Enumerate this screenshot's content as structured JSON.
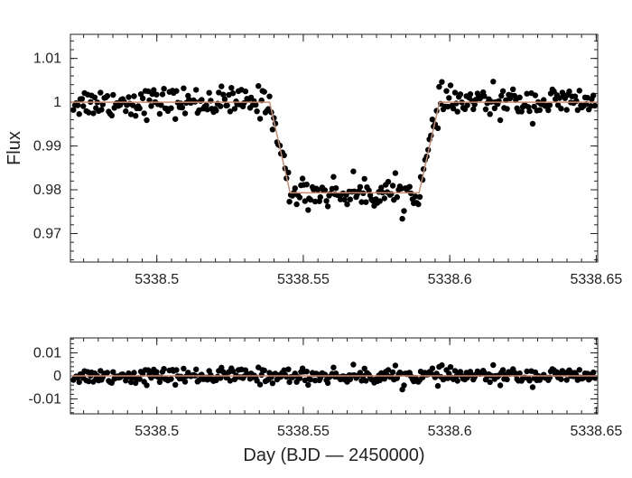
{
  "chart_data": [
    {
      "type": "scatter",
      "panel": "top",
      "title": "",
      "ylabel": "Flux",
      "xlabel": "",
      "xlim": [
        5338.4705,
        5338.6505
      ],
      "ylim": [
        0.9635,
        1.0155
      ],
      "yticks": [
        0.97,
        0.98,
        0.99,
        1.0,
        1.01
      ],
      "ytick_labels": [
        "0.97",
        "0.98",
        "0.99",
        "1",
        "1.01"
      ],
      "xticks": [
        5338.5,
        5338.55,
        5338.6,
        5338.65
      ],
      "xtick_labels": [
        "5338.5",
        "5338.55",
        "5338.6",
        "5338.65"
      ],
      "model_line": {
        "color": "#c98b6f",
        "x": [
          5338.4705,
          5338.5385,
          5338.5455,
          5338.5895,
          5338.5965,
          5338.6505
        ],
        "y": [
          1.0,
          1.0,
          0.9793,
          0.9793,
          1.0,
          1.0
        ]
      },
      "series_note": "~370 photometric points following the transit model with ~0.0015 scatter",
      "point_color": "#000000"
    },
    {
      "type": "scatter",
      "panel": "bottom",
      "title": "",
      "ylabel": "",
      "xlabel": "Day (BJD — 2450000)",
      "xlim": [
        5338.4705,
        5338.6505
      ],
      "ylim": [
        -0.0165,
        0.0165
      ],
      "yticks": [
        -0.01,
        0,
        0.01
      ],
      "ytick_labels": [
        "-0.01",
        "0",
        "0.01"
      ],
      "xticks": [
        5338.5,
        5338.55,
        5338.6,
        5338.65
      ],
      "xtick_labels": [
        "5338.5",
        "5338.55",
        "5338.6",
        "5338.65"
      ],
      "model_line": {
        "color": "#c98b6f",
        "x": [
          5338.4705,
          5338.6505
        ],
        "y": [
          0,
          0
        ]
      },
      "series_note": "residuals of the same ~370 points, scatter ~0.002",
      "point_color": "#000000"
    }
  ]
}
